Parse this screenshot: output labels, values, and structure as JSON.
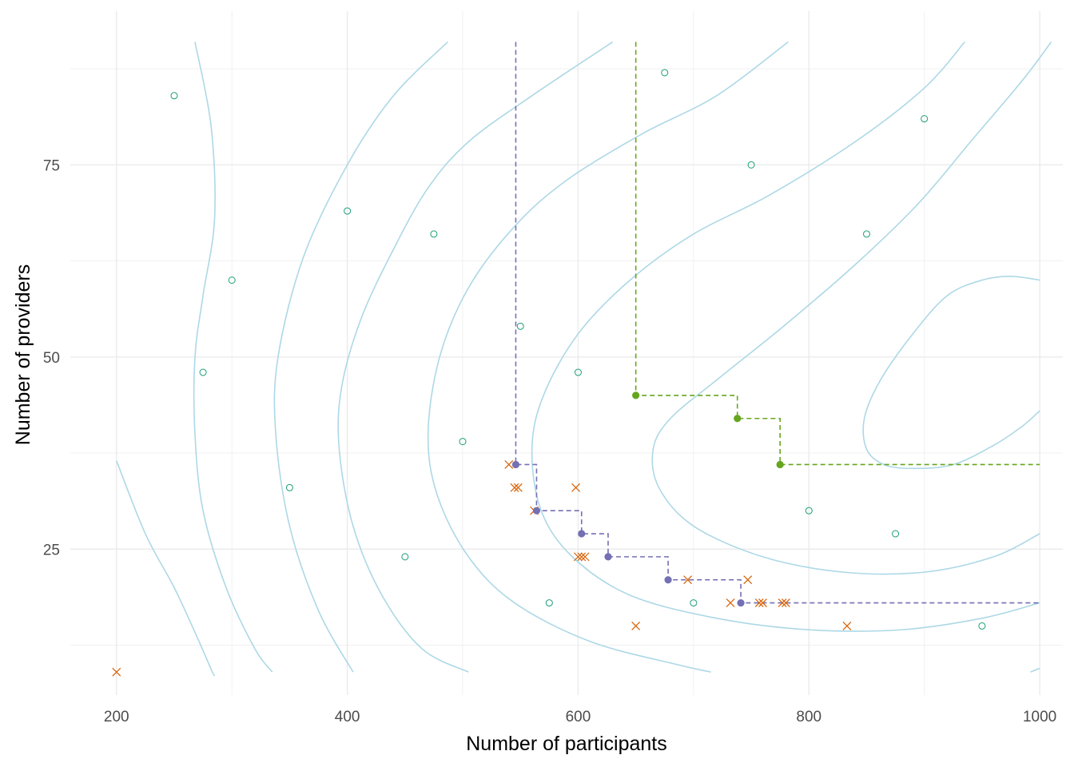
{
  "chart_data": {
    "type": "scatter",
    "title": "",
    "xlabel": "Number of participants",
    "ylabel": "Number of providers",
    "xlim": [
      160,
      1020
    ],
    "ylim": [
      6,
      95
    ],
    "x_ticks": [
      200,
      400,
      600,
      800,
      1000
    ],
    "x_tick_labels": [
      "200",
      "400",
      "600",
      "800",
      "1000"
    ],
    "y_ticks": [
      25,
      50,
      75
    ],
    "y_tick_labels": [
      "25",
      "50",
      "75"
    ],
    "grid": true,
    "legend": "none",
    "colors": {
      "contour": "#add8e6",
      "open_points": "#1b9e77",
      "crosses": "#d95f02",
      "purple_frontier": "#7570b3",
      "green_frontier": "#66a61e",
      "grid": "#ebebeb"
    },
    "open_points": [
      [
        250,
        84
      ],
      [
        275,
        48
      ],
      [
        300,
        60
      ],
      [
        350,
        33
      ],
      [
        400,
        69
      ],
      [
        450,
        24
      ],
      [
        475,
        66
      ],
      [
        500,
        39
      ],
      [
        550,
        54
      ],
      [
        575,
        18
      ],
      [
        600,
        48
      ],
      [
        675,
        87
      ],
      [
        700,
        18
      ],
      [
        750,
        75
      ],
      [
        800,
        30
      ],
      [
        850,
        66
      ],
      [
        875,
        27
      ],
      [
        900,
        81
      ],
      [
        950,
        15
      ]
    ],
    "crosses": [
      [
        200,
        9
      ],
      [
        540,
        36
      ],
      [
        545,
        33
      ],
      [
        548,
        33
      ],
      [
        562,
        30
      ],
      [
        598,
        33
      ],
      [
        600,
        24
      ],
      [
        603,
        24
      ],
      [
        606,
        24
      ],
      [
        650,
        15
      ],
      [
        695,
        21
      ],
      [
        732,
        18
      ],
      [
        747,
        21
      ],
      [
        757,
        18
      ],
      [
        760,
        18
      ],
      [
        777,
        18
      ],
      [
        780,
        18
      ],
      [
        833,
        15
      ]
    ],
    "purple_frontier": {
      "points": [
        [
          546,
          36
        ],
        [
          564,
          30
        ],
        [
          603,
          27
        ],
        [
          626,
          24
        ],
        [
          678,
          21
        ],
        [
          741,
          18
        ]
      ],
      "vertical_to": 91,
      "horizontal_to": 1000
    },
    "green_frontier": {
      "points": [
        [
          650,
          45
        ],
        [
          738,
          42
        ],
        [
          775,
          36
        ]
      ],
      "vertical_to": 91,
      "horizontal_to": 1000
    },
    "contours": [
      [
        [
          200,
          36.5
        ],
        [
          225,
          27
        ],
        [
          250,
          20
        ],
        [
          270,
          13.5
        ],
        [
          283,
          9
        ]
      ],
      [
        [
          283,
          9
        ],
        [
          285,
          8.5
        ]
      ],
      [
        [
          268,
          91
        ],
        [
          282,
          80
        ],
        [
          285,
          68
        ],
        [
          275,
          58
        ],
        [
          268,
          50
        ],
        [
          268,
          40
        ],
        [
          275,
          30
        ],
        [
          295,
          20
        ],
        [
          320,
          12
        ],
        [
          335,
          9
        ]
      ],
      [
        [
          487,
          91
        ],
        [
          440,
          84
        ],
        [
          400,
          75
        ],
        [
          362,
          63
        ],
        [
          340,
          50
        ],
        [
          338,
          40
        ],
        [
          350,
          28
        ],
        [
          375,
          17
        ],
        [
          405,
          9
        ]
      ],
      [
        [
          630,
          91
        ],
        [
          560,
          84
        ],
        [
          505,
          78
        ],
        [
          470,
          72
        ],
        [
          440,
          64
        ],
        [
          412,
          55
        ],
        [
          395,
          46
        ],
        [
          393,
          38
        ],
        [
          405,
          28
        ],
        [
          430,
          19
        ],
        [
          465,
          12
        ],
        [
          505,
          9
        ]
      ],
      [
        [
          782,
          91
        ],
        [
          720,
          84
        ],
        [
          655,
          79
        ],
        [
          590,
          73
        ],
        [
          545,
          67
        ],
        [
          505,
          59
        ],
        [
          480,
          50
        ],
        [
          470,
          40
        ],
        [
          478,
          32
        ],
        [
          505,
          24
        ],
        [
          545,
          18
        ],
        [
          610,
          13
        ],
        [
          685,
          10
        ],
        [
          715,
          9
        ]
      ],
      [
        [
          935,
          91
        ],
        [
          900,
          85
        ],
        [
          840,
          78
        ],
        [
          765,
          71
        ],
        [
          700,
          66
        ],
        [
          645,
          60
        ],
        [
          600,
          53
        ],
        [
          570,
          45
        ],
        [
          560,
          38
        ],
        [
          568,
          30
        ],
        [
          595,
          24
        ],
        [
          645,
          19
        ],
        [
          720,
          16
        ],
        [
          800,
          14.5
        ],
        [
          880,
          14.5
        ],
        [
          950,
          16
        ],
        [
          1000,
          18
        ]
      ],
      [
        [
          992,
          9
        ],
        [
          1000,
          9.5
        ]
      ],
      [
        [
          1010,
          91
        ],
        [
          985,
          86
        ],
        [
          940,
          78
        ],
        [
          895,
          70
        ],
        [
          840,
          62
        ],
        [
          778,
          54
        ],
        [
          720,
          47
        ],
        [
          680,
          42
        ],
        [
          665,
          38
        ],
        [
          670,
          33
        ],
        [
          700,
          28
        ],
        [
          760,
          24
        ],
        [
          830,
          22
        ],
        [
          900,
          22
        ],
        [
          960,
          24
        ],
        [
          1000,
          27
        ]
      ],
      [
        [
          1000,
          60
        ],
        [
          975,
          60.5
        ],
        [
          950,
          60
        ],
        [
          920,
          58
        ],
        [
          890,
          53
        ],
        [
          862,
          47
        ],
        [
          848,
          42
        ],
        [
          850,
          38
        ],
        [
          865,
          36
        ],
        [
          890,
          35.5
        ],
        [
          925,
          36
        ],
        [
          960,
          38.5
        ],
        [
          985,
          41
        ],
        [
          1000,
          43
        ]
      ]
    ]
  }
}
